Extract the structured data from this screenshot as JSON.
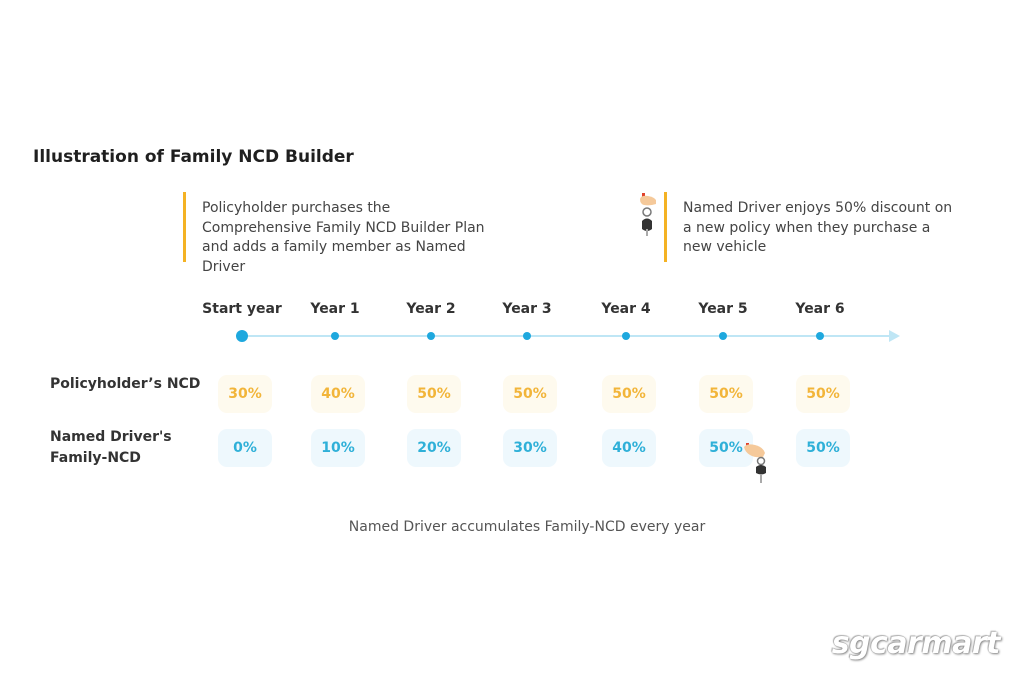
{
  "title": "Illustration of Family NCD Builder",
  "callouts": [
    {
      "text": "Policyholder purchases the Comprehensive Family NCD Builder Plan and adds a family member as Named Driver"
    },
    {
      "text": "Named Driver enjoys 50% discount on a new policy when they purchase a new vehicle",
      "icon": "car-key-icon"
    }
  ],
  "timeline": {
    "years": [
      "Start year",
      "Year 1",
      "Year 2",
      "Year 3",
      "Year 4",
      "Year 5",
      "Year 6"
    ]
  },
  "rows": {
    "policyholder": {
      "label": "Policyholder’s NCD",
      "values": [
        "30%",
        "40%",
        "50%",
        "50%",
        "50%",
        "50%",
        "50%"
      ]
    },
    "named_driver": {
      "label_line1": "Named Driver's",
      "label_line2": "Family-NCD",
      "values": [
        "0%",
        "10%",
        "20%",
        "30%",
        "40%",
        "50%",
        "50%"
      ],
      "key_icon_after": "Year 5"
    }
  },
  "footnote": "Named Driver accumulates Family-NCD every year",
  "watermark": "sgcarmart",
  "colors": {
    "accent_yellow": "#f4b223",
    "ncd_text": "#f2b53a",
    "family_text": "#2fb0d8",
    "timeline": "#1ea8de"
  }
}
